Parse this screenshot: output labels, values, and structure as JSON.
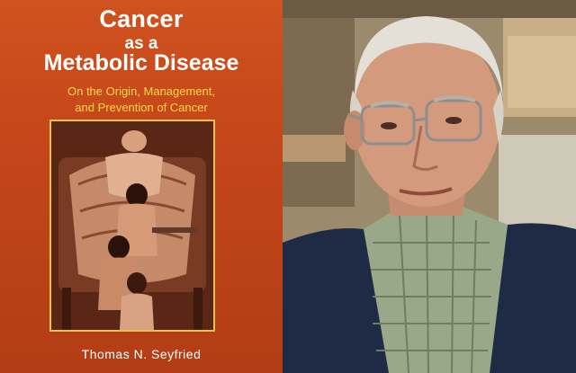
{
  "book": {
    "title_line1": "Cancer",
    "title_line2": "as a",
    "title_line3": "Metabolic Disease",
    "subtitle_line1": "On the Origin, Management,",
    "subtitle_line2": "and Prevention of Cancer",
    "author": "Thomas N. Seyfried"
  },
  "colors": {
    "cover_orange": "#c4461a",
    "subtitle_yellow": "#ffd94a",
    "frame_gold": "#e8c24a",
    "jacket_navy": "#1f2a44"
  }
}
